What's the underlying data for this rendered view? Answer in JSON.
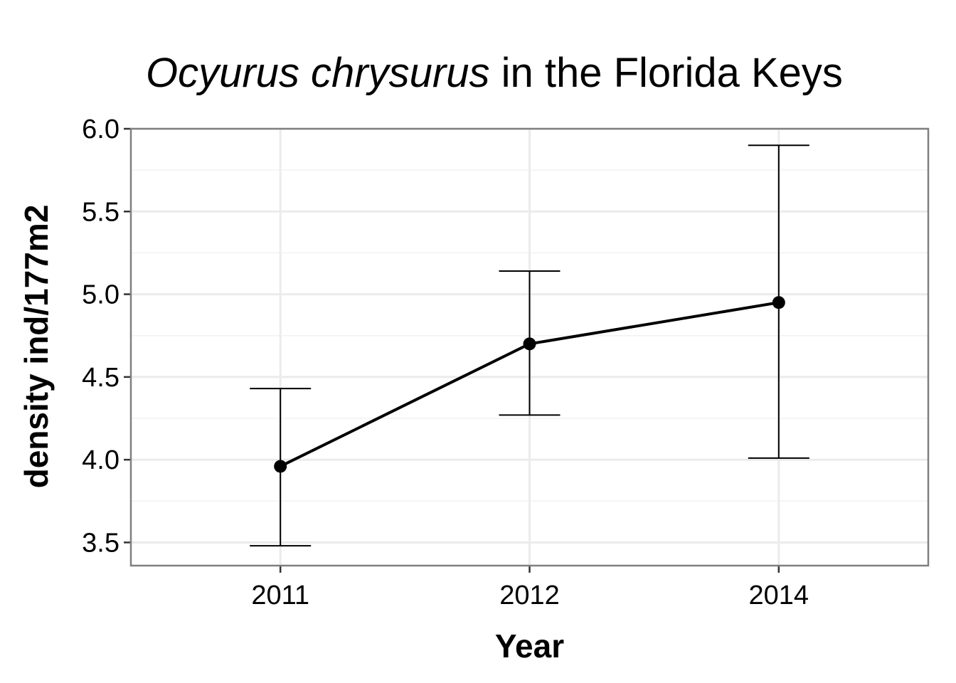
{
  "chart_data": {
    "type": "line",
    "title_italic": "Ocyurus chrysurus",
    "title_rest": " in the Florida Keys",
    "xlabel": "Year",
    "ylabel": "density ind/177m2",
    "categories": [
      "2011",
      "2012",
      "2014"
    ],
    "values": [
      3.96,
      4.7,
      4.95
    ],
    "error_upper": [
      4.43,
      5.14,
      5.9
    ],
    "error_lower": [
      3.48,
      4.27,
      4.01
    ],
    "ylim": [
      3.36,
      6.0
    ],
    "yticks": [
      3.5,
      4.0,
      4.5,
      5.0,
      5.5,
      6.0
    ],
    "ytick_labels": [
      "3.5",
      "4.0",
      "4.5",
      "5.0",
      "5.5",
      "6.0"
    ],
    "grid": true,
    "colors": {
      "line": "#000000",
      "grid": "#ebebeb",
      "panel_border": "#7f7f7f",
      "background": "#ffffff"
    }
  }
}
